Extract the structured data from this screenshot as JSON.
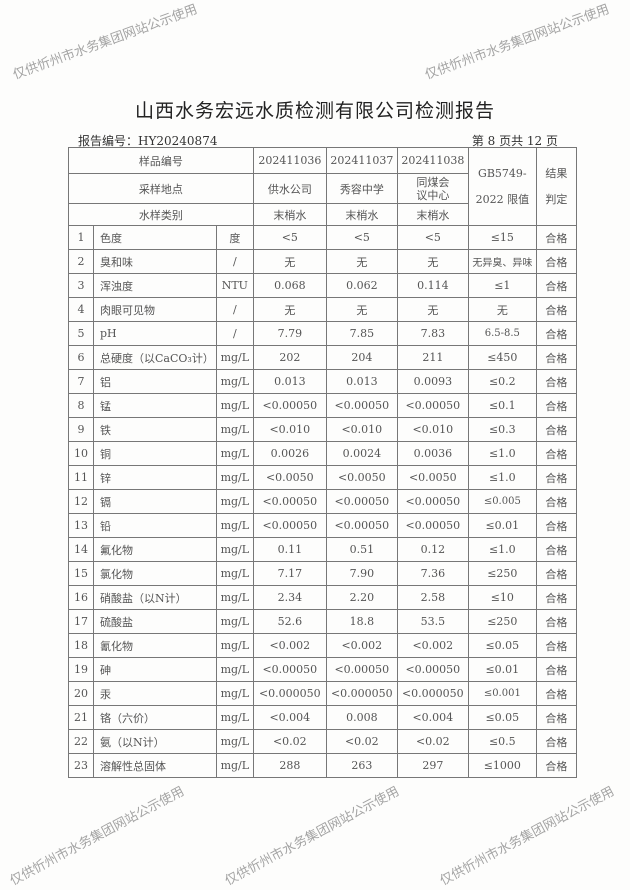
{
  "title": "山西水务宏远水质检测有限公司检测报告",
  "report_no": "报告编号：HY20240874",
  "page_no": "第 8 页共 12 页",
  "header": {
    "sample_no_label": "样品编号",
    "location_label": "采样地点",
    "type_label": "水样类别",
    "samples": [
      {
        "no": "202411036",
        "location": "供水公司",
        "type": "末梢水"
      },
      {
        "no": "202411037",
        "location": "秀容中学",
        "type": "末梢水"
      },
      {
        "no": "202411038",
        "location": "同煤会议中心",
        "type": "末梢水"
      }
    ],
    "limit_label": "GB5749-2022 限值",
    "result_label": "结果判定"
  },
  "rows": [
    {
      "n": "1",
      "item": "色度",
      "unit": "度",
      "v": [
        "<5",
        "<5",
        "<5"
      ],
      "limit": "≤15",
      "result": "合格"
    },
    {
      "n": "2",
      "item": "臭和味",
      "unit": "/",
      "v": [
        "无",
        "无",
        "无"
      ],
      "limit": "无异臭、异味",
      "result": "合格"
    },
    {
      "n": "3",
      "item": "浑浊度",
      "unit": "NTU",
      "v": [
        "0.068",
        "0.062",
        "0.114"
      ],
      "limit": "≤1",
      "result": "合格"
    },
    {
      "n": "4",
      "item": "肉眼可见物",
      "unit": "/",
      "v": [
        "无",
        "无",
        "无"
      ],
      "limit": "无",
      "result": "合格"
    },
    {
      "n": "5",
      "item": "pH",
      "unit": "/",
      "v": [
        "7.79",
        "7.85",
        "7.83"
      ],
      "limit": "6.5-8.5",
      "result": "合格"
    },
    {
      "n": "6",
      "item": "总硬度（以CaCO₃计）",
      "unit": "mg/L",
      "v": [
        "202",
        "204",
        "211"
      ],
      "limit": "≤450",
      "result": "合格"
    },
    {
      "n": "7",
      "item": "铝",
      "unit": "mg/L",
      "v": [
        "0.013",
        "0.013",
        "0.0093"
      ],
      "limit": "≤0.2",
      "result": "合格"
    },
    {
      "n": "8",
      "item": "锰",
      "unit": "mg/L",
      "v": [
        "<0.00050",
        "<0.00050",
        "<0.00050"
      ],
      "limit": "≤0.1",
      "result": "合格"
    },
    {
      "n": "9",
      "item": "铁",
      "unit": "mg/L",
      "v": [
        "<0.010",
        "<0.010",
        "<0.010"
      ],
      "limit": "≤0.3",
      "result": "合格"
    },
    {
      "n": "10",
      "item": "铜",
      "unit": "mg/L",
      "v": [
        "0.0026",
        "0.0024",
        "0.0036"
      ],
      "limit": "≤1.0",
      "result": "合格"
    },
    {
      "n": "11",
      "item": "锌",
      "unit": "mg/L",
      "v": [
        "<0.0050",
        "<0.0050",
        "<0.0050"
      ],
      "limit": "≤1.0",
      "result": "合格"
    },
    {
      "n": "12",
      "item": "镉",
      "unit": "mg/L",
      "v": [
        "<0.00050",
        "<0.00050",
        "<0.00050"
      ],
      "limit": "≤0.005",
      "result": "合格"
    },
    {
      "n": "13",
      "item": "铅",
      "unit": "mg/L",
      "v": [
        "<0.00050",
        "<0.00050",
        "<0.00050"
      ],
      "limit": "≤0.01",
      "result": "合格"
    },
    {
      "n": "14",
      "item": "氟化物",
      "unit": "mg/L",
      "v": [
        "0.11",
        "0.51",
        "0.12"
      ],
      "limit": "≤1.0",
      "result": "合格"
    },
    {
      "n": "15",
      "item": "氯化物",
      "unit": "mg/L",
      "v": [
        "7.17",
        "7.90",
        "7.36"
      ],
      "limit": "≤250",
      "result": "合格"
    },
    {
      "n": "16",
      "item": "硝酸盐（以N计）",
      "unit": "mg/L",
      "v": [
        "2.34",
        "2.20",
        "2.58"
      ],
      "limit": "≤10",
      "result": "合格"
    },
    {
      "n": "17",
      "item": "硫酸盐",
      "unit": "mg/L",
      "v": [
        "52.6",
        "18.8",
        "53.5"
      ],
      "limit": "≤250",
      "result": "合格"
    },
    {
      "n": "18",
      "item": "氰化物",
      "unit": "mg/L",
      "v": [
        "<0.002",
        "<0.002",
        "<0.002"
      ],
      "limit": "≤0.05",
      "result": "合格"
    },
    {
      "n": "19",
      "item": "砷",
      "unit": "mg/L",
      "v": [
        "<0.00050",
        "<0.00050",
        "<0.00050"
      ],
      "limit": "≤0.01",
      "result": "合格"
    },
    {
      "n": "20",
      "item": "汞",
      "unit": "mg/L",
      "v": [
        "<0.000050",
        "<0.000050",
        "<0.000050"
      ],
      "limit": "≤0.001",
      "result": "合格"
    },
    {
      "n": "21",
      "item": "铬（六价）",
      "unit": "mg/L",
      "v": [
        "<0.004",
        "0.008",
        "<0.004"
      ],
      "limit": "≤0.05",
      "result": "合格"
    },
    {
      "n": "22",
      "item": "氨（以N计）",
      "unit": "mg/L",
      "v": [
        "<0.02",
        "<0.02",
        "<0.02"
      ],
      "limit": "≤0.5",
      "result": "合格"
    },
    {
      "n": "23",
      "item": "溶解性总固体",
      "unit": "mg/L",
      "v": [
        "288",
        "263",
        "297"
      ],
      "limit": "≤1000",
      "result": "合格"
    }
  ],
  "watermark": "仅供忻州市水务集团网站公示使用"
}
